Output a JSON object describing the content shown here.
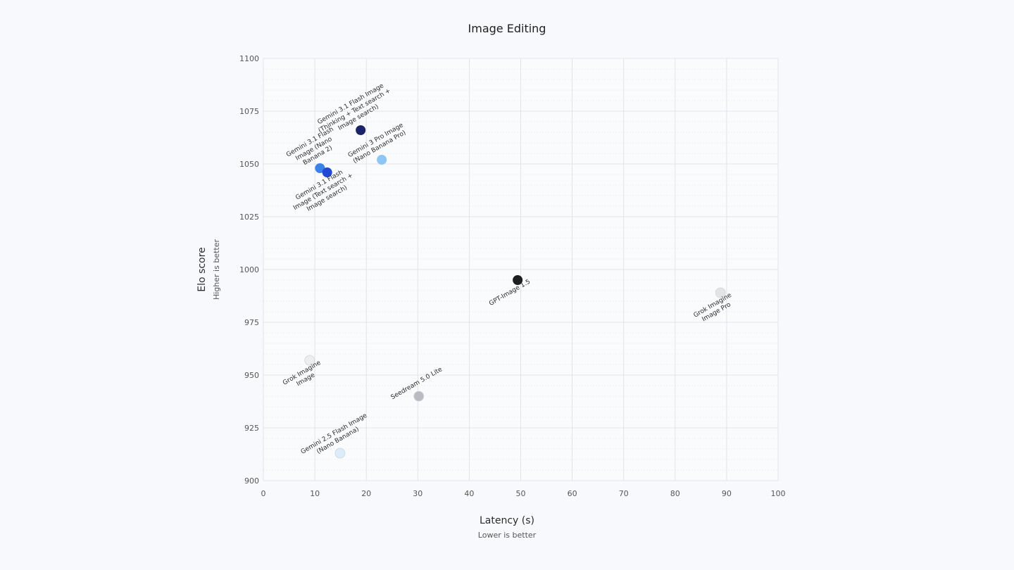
{
  "chart_data": {
    "type": "scatter",
    "title": "Image Editing",
    "xlabel": "Latency (s)",
    "xlabel_sub": "Lower is better",
    "ylabel": "Elo score",
    "ylabel_sub": "Higher is better",
    "xlim": [
      0,
      100
    ],
    "ylim": [
      900,
      1100
    ],
    "xticks": [
      0,
      10,
      20,
      30,
      40,
      50,
      60,
      70,
      80,
      90,
      100
    ],
    "yticks": [
      900,
      925,
      950,
      975,
      1000,
      1025,
      1050,
      1075,
      1100
    ],
    "grid": true,
    "points": [
      {
        "label": [
          "Gemini 3.1 Flash Image",
          "(Thinking + Text search +",
          "Image search)"
        ],
        "x": 18.9,
        "y": 1066,
        "color": "#1a2466",
        "label_pos": "above"
      },
      {
        "label": [
          "Gemini 3 Pro Image",
          "(Nano Banana Pro)"
        ],
        "x": 23.0,
        "y": 1052,
        "color": "#8ec5f5",
        "label_pos": "above"
      },
      {
        "label": [
          "Gemini 3.1 Flash",
          "Image (Nano",
          "Banana 2)"
        ],
        "x": 11.0,
        "y": 1048,
        "color": "#3b82e8",
        "label_pos": "above"
      },
      {
        "label": [
          "Gemini 3.1 Flash",
          "Image (Text search +",
          "Image search)"
        ],
        "x": 12.4,
        "y": 1046,
        "color": "#2149d4",
        "label_pos": "below"
      },
      {
        "label": [
          "GPT-Image 1.5"
        ],
        "x": 49.4,
        "y": 995,
        "color": "#1f1f1f",
        "label_pos": "below"
      },
      {
        "label": [
          "Grok Imagine",
          "Image Pro"
        ],
        "x": 88.8,
        "y": 989,
        "color": "#e4e4e4",
        "label_pos": "below"
      },
      {
        "label": [
          "Grok Imagine",
          "Image"
        ],
        "x": 9.0,
        "y": 957,
        "color": "#eeeeee",
        "label_pos": "below"
      },
      {
        "label": [
          "Seedream 5.0 Lite"
        ],
        "x": 30.2,
        "y": 940,
        "color": "#b8bcc2",
        "label_pos": "above"
      },
      {
        "label": [
          "Gemini 2.5 Flash Image",
          "(Nano Banana)"
        ],
        "x": 14.9,
        "y": 913,
        "color": "#dcecfa",
        "label_pos": "above"
      }
    ]
  }
}
